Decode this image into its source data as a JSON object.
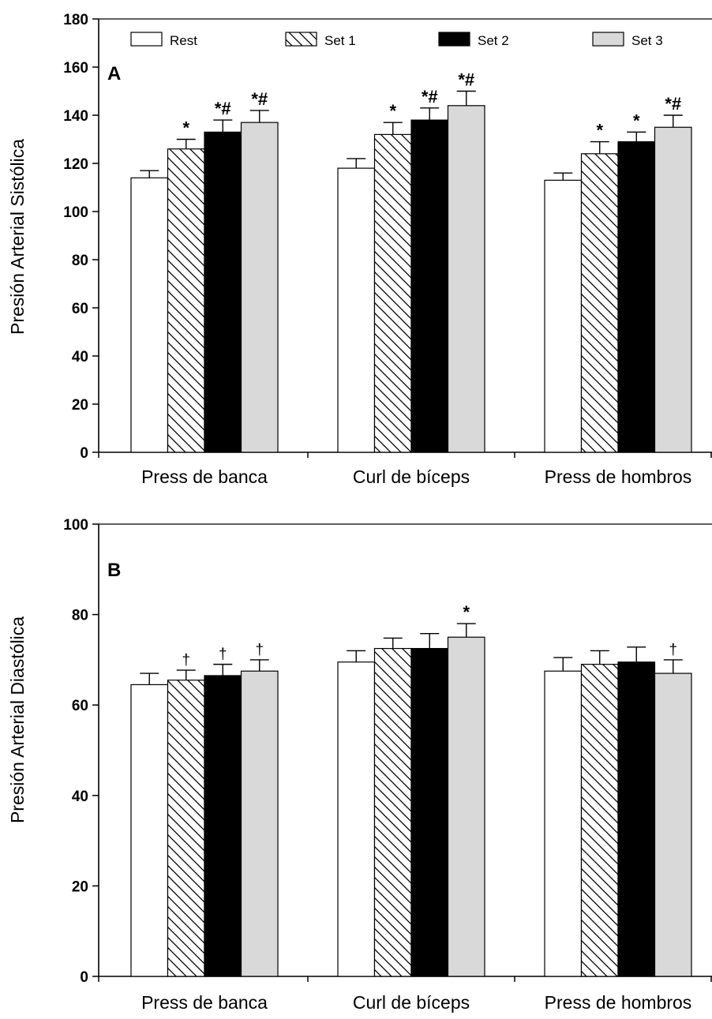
{
  "colors": {
    "Rest": "#ffffff",
    "Set 1": "hatch",
    "Set 2": "#000000",
    "Set 3": "#d9d9d9",
    "stroke": "#000000"
  },
  "legend": [
    "Rest",
    "Set 1",
    "Set 2",
    "Set 3"
  ],
  "chart_data": [
    {
      "type": "bar",
      "panel": "A",
      "ylabel": "Presión Arterial Sistólica",
      "xlabel": "",
      "ylim": [
        0,
        180
      ],
      "yticks": [
        0,
        20,
        40,
        60,
        80,
        100,
        120,
        140,
        160,
        180
      ],
      "categories": [
        "Press de banca",
        "Curl de bíceps",
        "Press de hombros"
      ],
      "series": [
        {
          "name": "Rest",
          "values": [
            114,
            118,
            113
          ],
          "errors": [
            3,
            4,
            3
          ],
          "annotations": [
            "",
            "",
            ""
          ]
        },
        {
          "name": "Set 1",
          "values": [
            126,
            132,
            124
          ],
          "errors": [
            4,
            5,
            5
          ],
          "annotations": [
            "*",
            "*",
            "*"
          ]
        },
        {
          "name": "Set 2",
          "values": [
            133,
            138,
            129
          ],
          "errors": [
            5,
            5,
            4
          ],
          "annotations": [
            "*#",
            "*#",
            "*"
          ]
        },
        {
          "name": "Set 3",
          "values": [
            137,
            144,
            135
          ],
          "errors": [
            5,
            6,
            5
          ],
          "annotations": [
            "*#",
            "*#",
            "*#"
          ]
        }
      ],
      "grid": false,
      "legend_position": "top"
    },
    {
      "type": "bar",
      "panel": "B",
      "ylabel": "Presión Arterial Diastólica",
      "xlabel": "",
      "ylim": [
        0,
        100
      ],
      "yticks": [
        0,
        20,
        40,
        60,
        80,
        100
      ],
      "categories": [
        "Press de banca",
        "Curl de bíceps",
        "Press de hombros"
      ],
      "series": [
        {
          "name": "Rest",
          "values": [
            64.5,
            69.5,
            67.5
          ],
          "errors": [
            2.5,
            2.5,
            3
          ],
          "annotations": [
            "",
            "",
            ""
          ]
        },
        {
          "name": "Set 1",
          "values": [
            65.5,
            72.5,
            69
          ],
          "errors": [
            2.2,
            2.3,
            3
          ],
          "annotations": [
            "†",
            "",
            ""
          ]
        },
        {
          "name": "Set 2",
          "values": [
            66.5,
            72.5,
            69.5
          ],
          "errors": [
            2.5,
            3.3,
            3.3
          ],
          "annotations": [
            "†",
            "",
            ""
          ]
        },
        {
          "name": "Set 3",
          "values": [
            67.5,
            75,
            67
          ],
          "errors": [
            2.5,
            3,
            3
          ],
          "annotations": [
            "†",
            "*",
            "†"
          ]
        }
      ],
      "grid": false,
      "legend_position": "none"
    }
  ]
}
